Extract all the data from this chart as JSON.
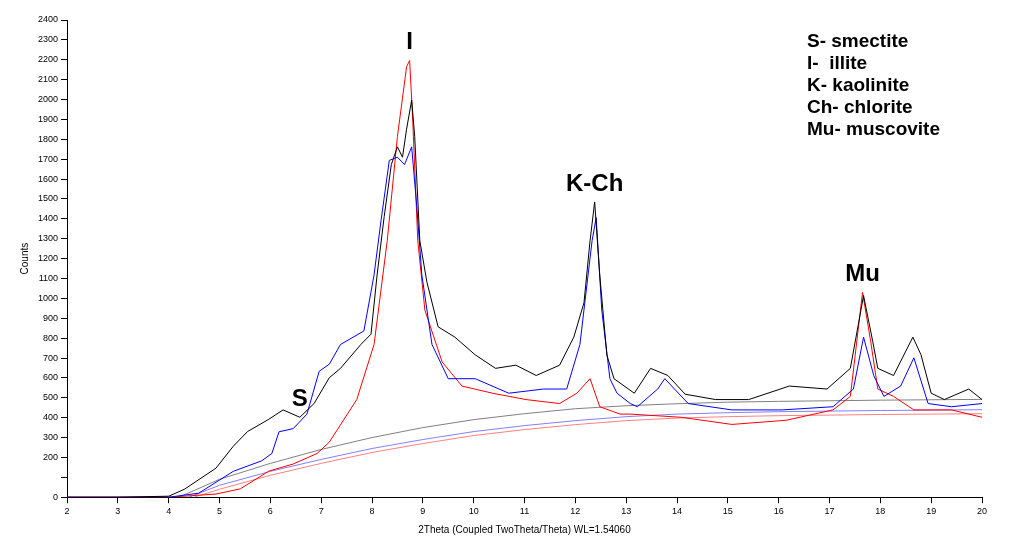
{
  "chart_data": {
    "type": "line",
    "xlabel": "2Theta (Coupled TwoTheta/Theta) WL=1.54060",
    "ylabel": "Counts",
    "xlim": [
      2,
      20
    ],
    "xticks": [
      2,
      3,
      4,
      5,
      6,
      7,
      8,
      9,
      10,
      11,
      12,
      13,
      14,
      15,
      16,
      17,
      18,
      19,
      20
    ],
    "ylim": [
      0,
      2400
    ],
    "yticks": [
      0,
      {
        "value": 100,
        "label": null
      },
      200,
      300,
      400,
      500,
      600,
      700,
      800,
      900,
      1000,
      1100,
      1200,
      1300,
      1400,
      1500,
      1600,
      1700,
      1800,
      1900,
      2000,
      2100,
      2200,
      2300,
      2400
    ],
    "grid": false,
    "legend": false,
    "marker": "none",
    "line_style": "solid",
    "series": [
      {
        "color": "#000000",
        "x": [
          2,
          3,
          4,
          4.31,
          4.93,
          5.27,
          5.55,
          5.97,
          6.25,
          6.58,
          6.86,
          7.16,
          7.38,
          7.78,
          7.98,
          8.1,
          8.24,
          8.38,
          8.5,
          8.6,
          8.68,
          8.78,
          8.84,
          8.94,
          9.08,
          9.3,
          9.63,
          10.03,
          10.43,
          10.83,
          11.23,
          11.69,
          11.97,
          12.17,
          12.29,
          12.38,
          12.48,
          12.62,
          12.76,
          13.16,
          13.48,
          13.82,
          14.16,
          14.76,
          15.41,
          16.21,
          16.95,
          17.41,
          17.67,
          17.85,
          17.95,
          18.26,
          18.64,
          18.8,
          19,
          19.26,
          19.74,
          20
        ],
        "values": [
          0,
          0,
          5,
          40,
          146,
          256,
          330,
          392,
          439,
          402,
          471,
          601,
          648,
          768,
          820,
          1118,
          1412,
          1673,
          1762,
          1710,
          1851,
          1997,
          1814,
          1291,
          1082,
          857,
          805,
          716,
          648,
          664,
          612,
          664,
          805,
          978,
          1291,
          1485,
          1118,
          716,
          596,
          523,
          648,
          612,
          518,
          491,
          491,
          559,
          544,
          648,
          1014,
          784,
          648,
          612,
          805,
          716,
          523,
          491,
          544,
          491
        ]
      },
      {
        "color": "#0000ff",
        "x": [
          2,
          3,
          4,
          4.59,
          5.27,
          5.83,
          6.03,
          6.17,
          6.45,
          6.72,
          6.96,
          7.16,
          7.38,
          7.84,
          8.04,
          8.18,
          8.34,
          8.5,
          8.64,
          8.78,
          8.88,
          8.98,
          9.18,
          9.5,
          10.03,
          10.69,
          11.37,
          11.83,
          12.09,
          12.33,
          12.41,
          12.52,
          12.68,
          12.82,
          13.08,
          13.22,
          13.62,
          13.76,
          14.22,
          15.08,
          16.07,
          17.07,
          17.47,
          17.67,
          17.87,
          18.07,
          18.4,
          18.66,
          18.94,
          19.4,
          20
        ],
        "values": [
          0,
          0,
          0,
          20,
          130,
          183,
          220,
          329,
          345,
          418,
          633,
          669,
          768,
          836,
          1118,
          1396,
          1694,
          1710,
          1673,
          1762,
          1464,
          1118,
          768,
          596,
          596,
          523,
          544,
          544,
          768,
          1291,
          1406,
          941,
          596,
          523,
          471,
          455,
          544,
          596,
          471,
          439,
          439,
          455,
          544,
          805,
          612,
          507,
          559,
          701,
          471,
          455,
          471
        ]
      },
      {
        "color": "#ff0000",
        "x": [
          2,
          3,
          4,
          4.93,
          5.41,
          5.97,
          6.45,
          6.92,
          7.16,
          7.7,
          8.04,
          8.3,
          8.5,
          8.68,
          8.74,
          8.8,
          8.9,
          9.04,
          9.38,
          9.77,
          10.37,
          11.03,
          11.69,
          12.03,
          12.29,
          12.48,
          12.88,
          13.08,
          14.08,
          15.08,
          16.15,
          17.07,
          17.41,
          17.65,
          17.81,
          17.95,
          18.26,
          18.66,
          19.4,
          20
        ],
        "values": [
          0,
          0,
          0,
          16,
          42,
          131,
          167,
          220,
          277,
          491,
          768,
          1291,
          1814,
          2165,
          2196,
          1903,
          1291,
          941,
          680,
          559,
          523,
          491,
          471,
          523,
          596,
          455,
          418,
          418,
          402,
          366,
          387,
          439,
          507,
          1030,
          784,
          544,
          507,
          439,
          439,
          402
        ]
      },
      {
        "color": "#808080",
        "x": [
          4.2,
          5,
          6,
          7,
          8,
          9,
          10,
          11,
          12,
          13,
          14,
          15,
          16,
          17,
          18,
          19,
          20
        ],
        "values": [
          0,
          90,
          170,
          240,
          300,
          350,
          390,
          420,
          445,
          460,
          470,
          478,
          482,
          485,
          488,
          490,
          492
        ]
      },
      {
        "color": "#8080ff",
        "x": [
          4.4,
          5,
          6,
          7,
          8,
          9,
          10,
          11,
          12,
          13,
          14,
          15,
          16,
          17,
          18,
          19,
          20
        ],
        "values": [
          0,
          60,
          130,
          190,
          245,
          290,
          330,
          360,
          385,
          405,
          418,
          425,
          430,
          433,
          436,
          438,
          440
        ]
      },
      {
        "color": "#ff8080",
        "x": [
          4.5,
          5,
          6,
          7,
          8,
          9,
          10,
          11,
          12,
          13,
          14,
          15,
          16,
          17,
          18,
          19,
          20
        ],
        "values": [
          0,
          40,
          110,
          170,
          225,
          270,
          310,
          340,
          365,
          385,
          398,
          405,
          410,
          413,
          416,
          418,
          420
        ]
      }
    ],
    "annotations": [
      {
        "text": "S",
        "x": 6.58,
        "y": 402
      },
      {
        "text": "I",
        "x": 8.74,
        "y": 2196
      },
      {
        "text": "K-Ch",
        "x": 12.38,
        "y": 1485
      },
      {
        "text": "Mu",
        "x": 17.65,
        "y": 1030
      },
      "S- smectite",
      "I-  illite",
      "K- kaolinite",
      "Ch- chlorite",
      "Mu- muscovite"
    ]
  }
}
